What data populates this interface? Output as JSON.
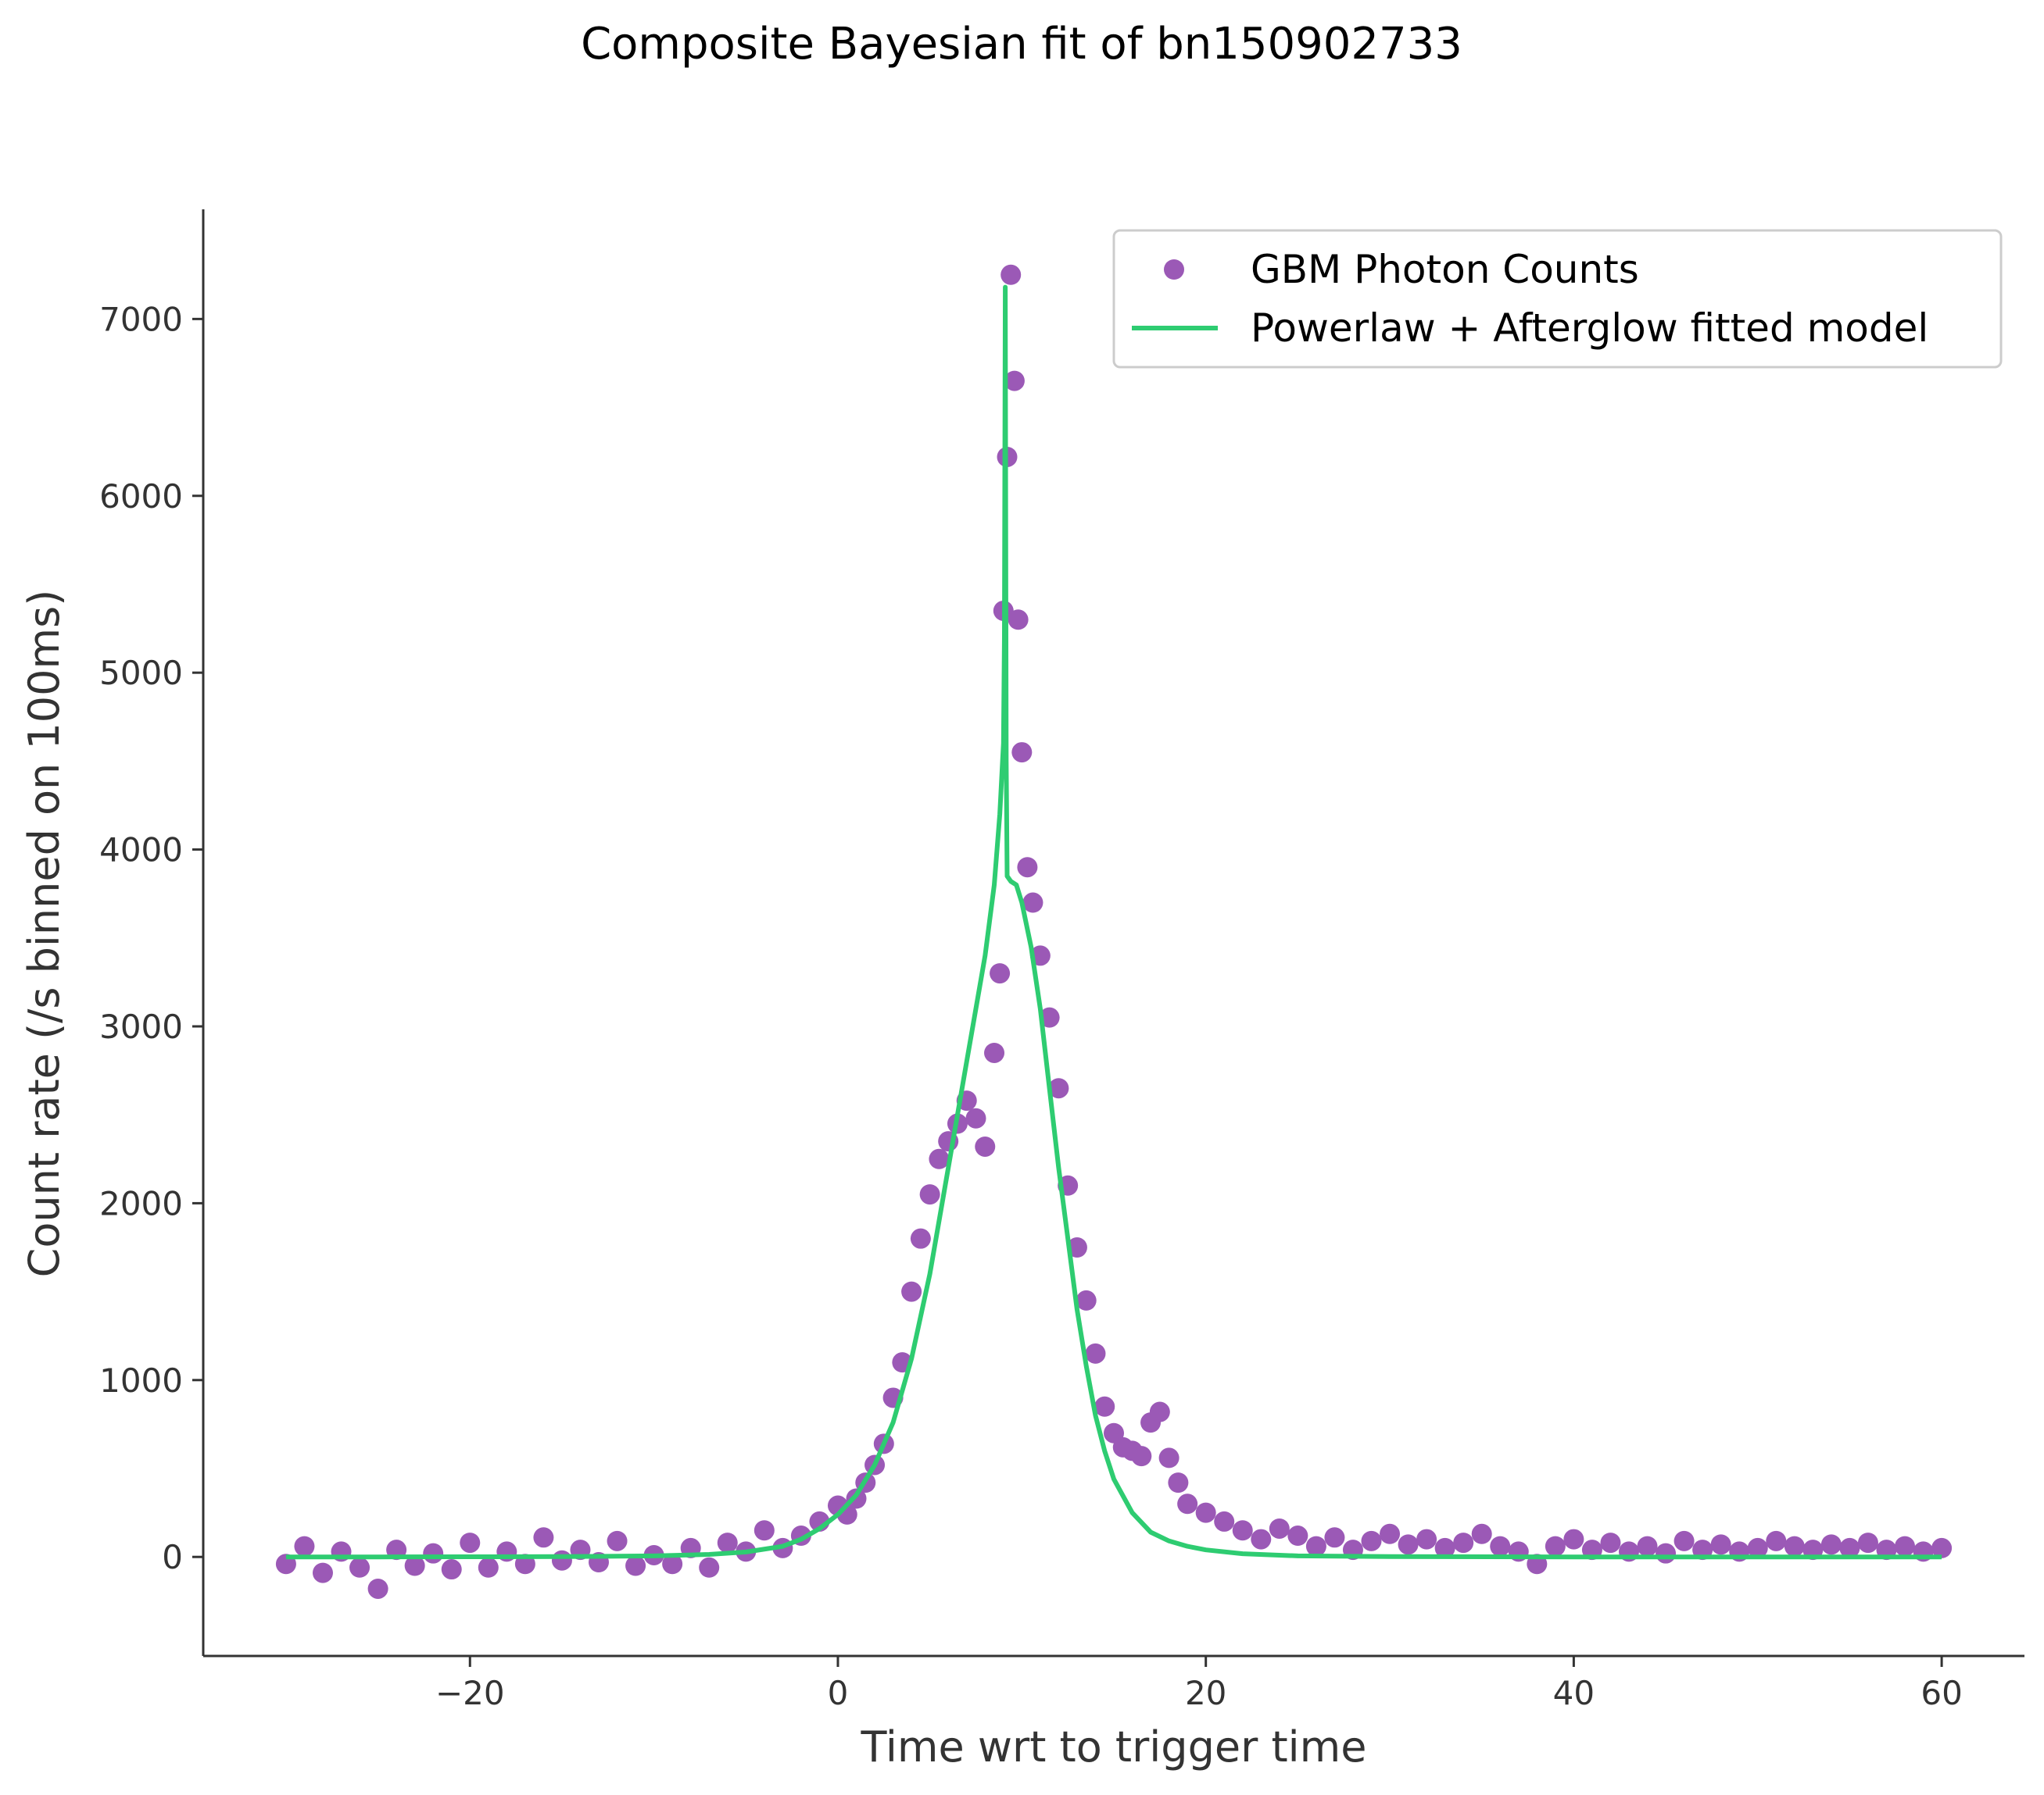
{
  "chart_data": {
    "type": "scatter",
    "title": "Composite Bayesian fit of bn150902733",
    "xlabel": "Time wrt to trigger time",
    "ylabel": "Count rate (/s binned on 100ms)",
    "xlim": [
      -34.5,
      64.5
    ],
    "ylim": [
      -560,
      7620
    ],
    "xticks": [
      -20,
      0,
      20,
      40,
      60
    ],
    "xtick_labels": [
      "−20",
      "0",
      "20",
      "40",
      "60"
    ],
    "yticks": [
      0,
      1000,
      2000,
      3000,
      4000,
      5000,
      6000,
      7000
    ],
    "ytick_labels": [
      "0",
      "1000",
      "2000",
      "3000",
      "4000",
      "5000",
      "6000",
      "7000"
    ],
    "grid": false,
    "legend_position": "top-right",
    "series": [
      {
        "name": "GBM Photon Counts",
        "kind": "scatter",
        "color": "#9b59b6",
        "x": [
          -30,
          -29,
          -28,
          -27,
          -26,
          -25,
          -24,
          -23,
          -22,
          -21,
          -20,
          -19,
          -18,
          -17,
          -16,
          -15,
          -14,
          -13,
          -12,
          -11,
          -10,
          -9,
          -8,
          -7,
          -6,
          -5,
          -4,
          -3,
          -2,
          -1,
          0,
          0.5,
          1,
          1.5,
          2,
          2.5,
          3,
          3.5,
          4,
          4.5,
          5,
          5.5,
          6,
          6.5,
          7,
          7.5,
          8,
          8.5,
          8.8,
          9.0,
          9.2,
          9.4,
          9.6,
          9.8,
          10.0,
          10.3,
          10.6,
          11.0,
          11.5,
          12.0,
          12.5,
          13.0,
          13.5,
          14.0,
          14.5,
          15.0,
          15.5,
          16.0,
          16.5,
          17.0,
          17.5,
          18.0,
          18.5,
          19.0,
          20,
          21,
          22,
          23,
          24,
          25,
          26,
          27,
          28,
          29,
          30,
          31,
          32,
          33,
          34,
          35,
          36,
          37,
          38,
          39,
          40,
          41,
          42,
          43,
          44,
          45,
          46,
          47,
          48,
          49,
          50,
          51,
          52,
          53,
          54,
          55,
          56,
          57,
          58,
          59,
          60
        ],
        "y": [
          -40,
          60,
          -90,
          30,
          -60,
          -180,
          40,
          -50,
          20,
          -70,
          80,
          -60,
          30,
          -40,
          110,
          -20,
          40,
          -30,
          90,
          -50,
          10,
          -40,
          50,
          -60,
          80,
          30,
          150,
          50,
          120,
          200,
          290,
          240,
          330,
          420,
          520,
          640,
          900,
          1100,
          1500,
          1800,
          2050,
          2250,
          2350,
          2450,
          2580,
          2480,
          2320,
          2850,
          3300,
          5350,
          6220,
          7250,
          6650,
          5300,
          4550,
          3900,
          3700,
          3400,
          3050,
          2650,
          2100,
          1750,
          1450,
          1150,
          850,
          700,
          620,
          600,
          570,
          760,
          820,
          560,
          420,
          300,
          250,
          200,
          150,
          100,
          160,
          120,
          60,
          110,
          40,
          90,
          130,
          70,
          100,
          50,
          80,
          130,
          60,
          30,
          -40,
          60,
          100,
          40,
          80,
          30,
          60,
          20,
          90,
          40,
          70,
          30,
          50,
          90,
          60,
          40,
          70,
          50,
          80,
          40,
          60,
          30,
          50
        ]
      },
      {
        "name": "Powerlaw + Afterglow fitted model",
        "kind": "line",
        "color": "#2ecc71",
        "x": [
          -30,
          -25,
          -20,
          -15,
          -10,
          -7,
          -5,
          -3,
          -2,
          -1,
          0,
          1,
          2,
          3,
          4,
          5,
          6,
          7,
          7.5,
          8,
          8.5,
          8.8,
          9.0,
          9.05,
          9.1,
          9.15,
          9.2,
          9.4,
          9.7,
          10,
          10.5,
          11,
          11.5,
          12,
          12.5,
          13,
          13.5,
          14,
          14.5,
          15,
          16,
          17,
          18,
          19,
          20,
          22,
          25,
          30,
          40,
          50,
          60
        ],
        "y": [
          0,
          0,
          1,
          2,
          6,
          14,
          28,
          60,
          100,
          160,
          240,
          350,
          520,
          760,
          1120,
          1600,
          2200,
          2800,
          3100,
          3400,
          3800,
          4200,
          4600,
          5200,
          7180,
          4500,
          3850,
          3820,
          3800,
          3700,
          3450,
          3100,
          2650,
          2200,
          1800,
          1400,
          1080,
          800,
          600,
          440,
          250,
          140,
          90,
          60,
          40,
          18,
          6,
          2,
          0,
          0,
          0
        ]
      }
    ]
  }
}
